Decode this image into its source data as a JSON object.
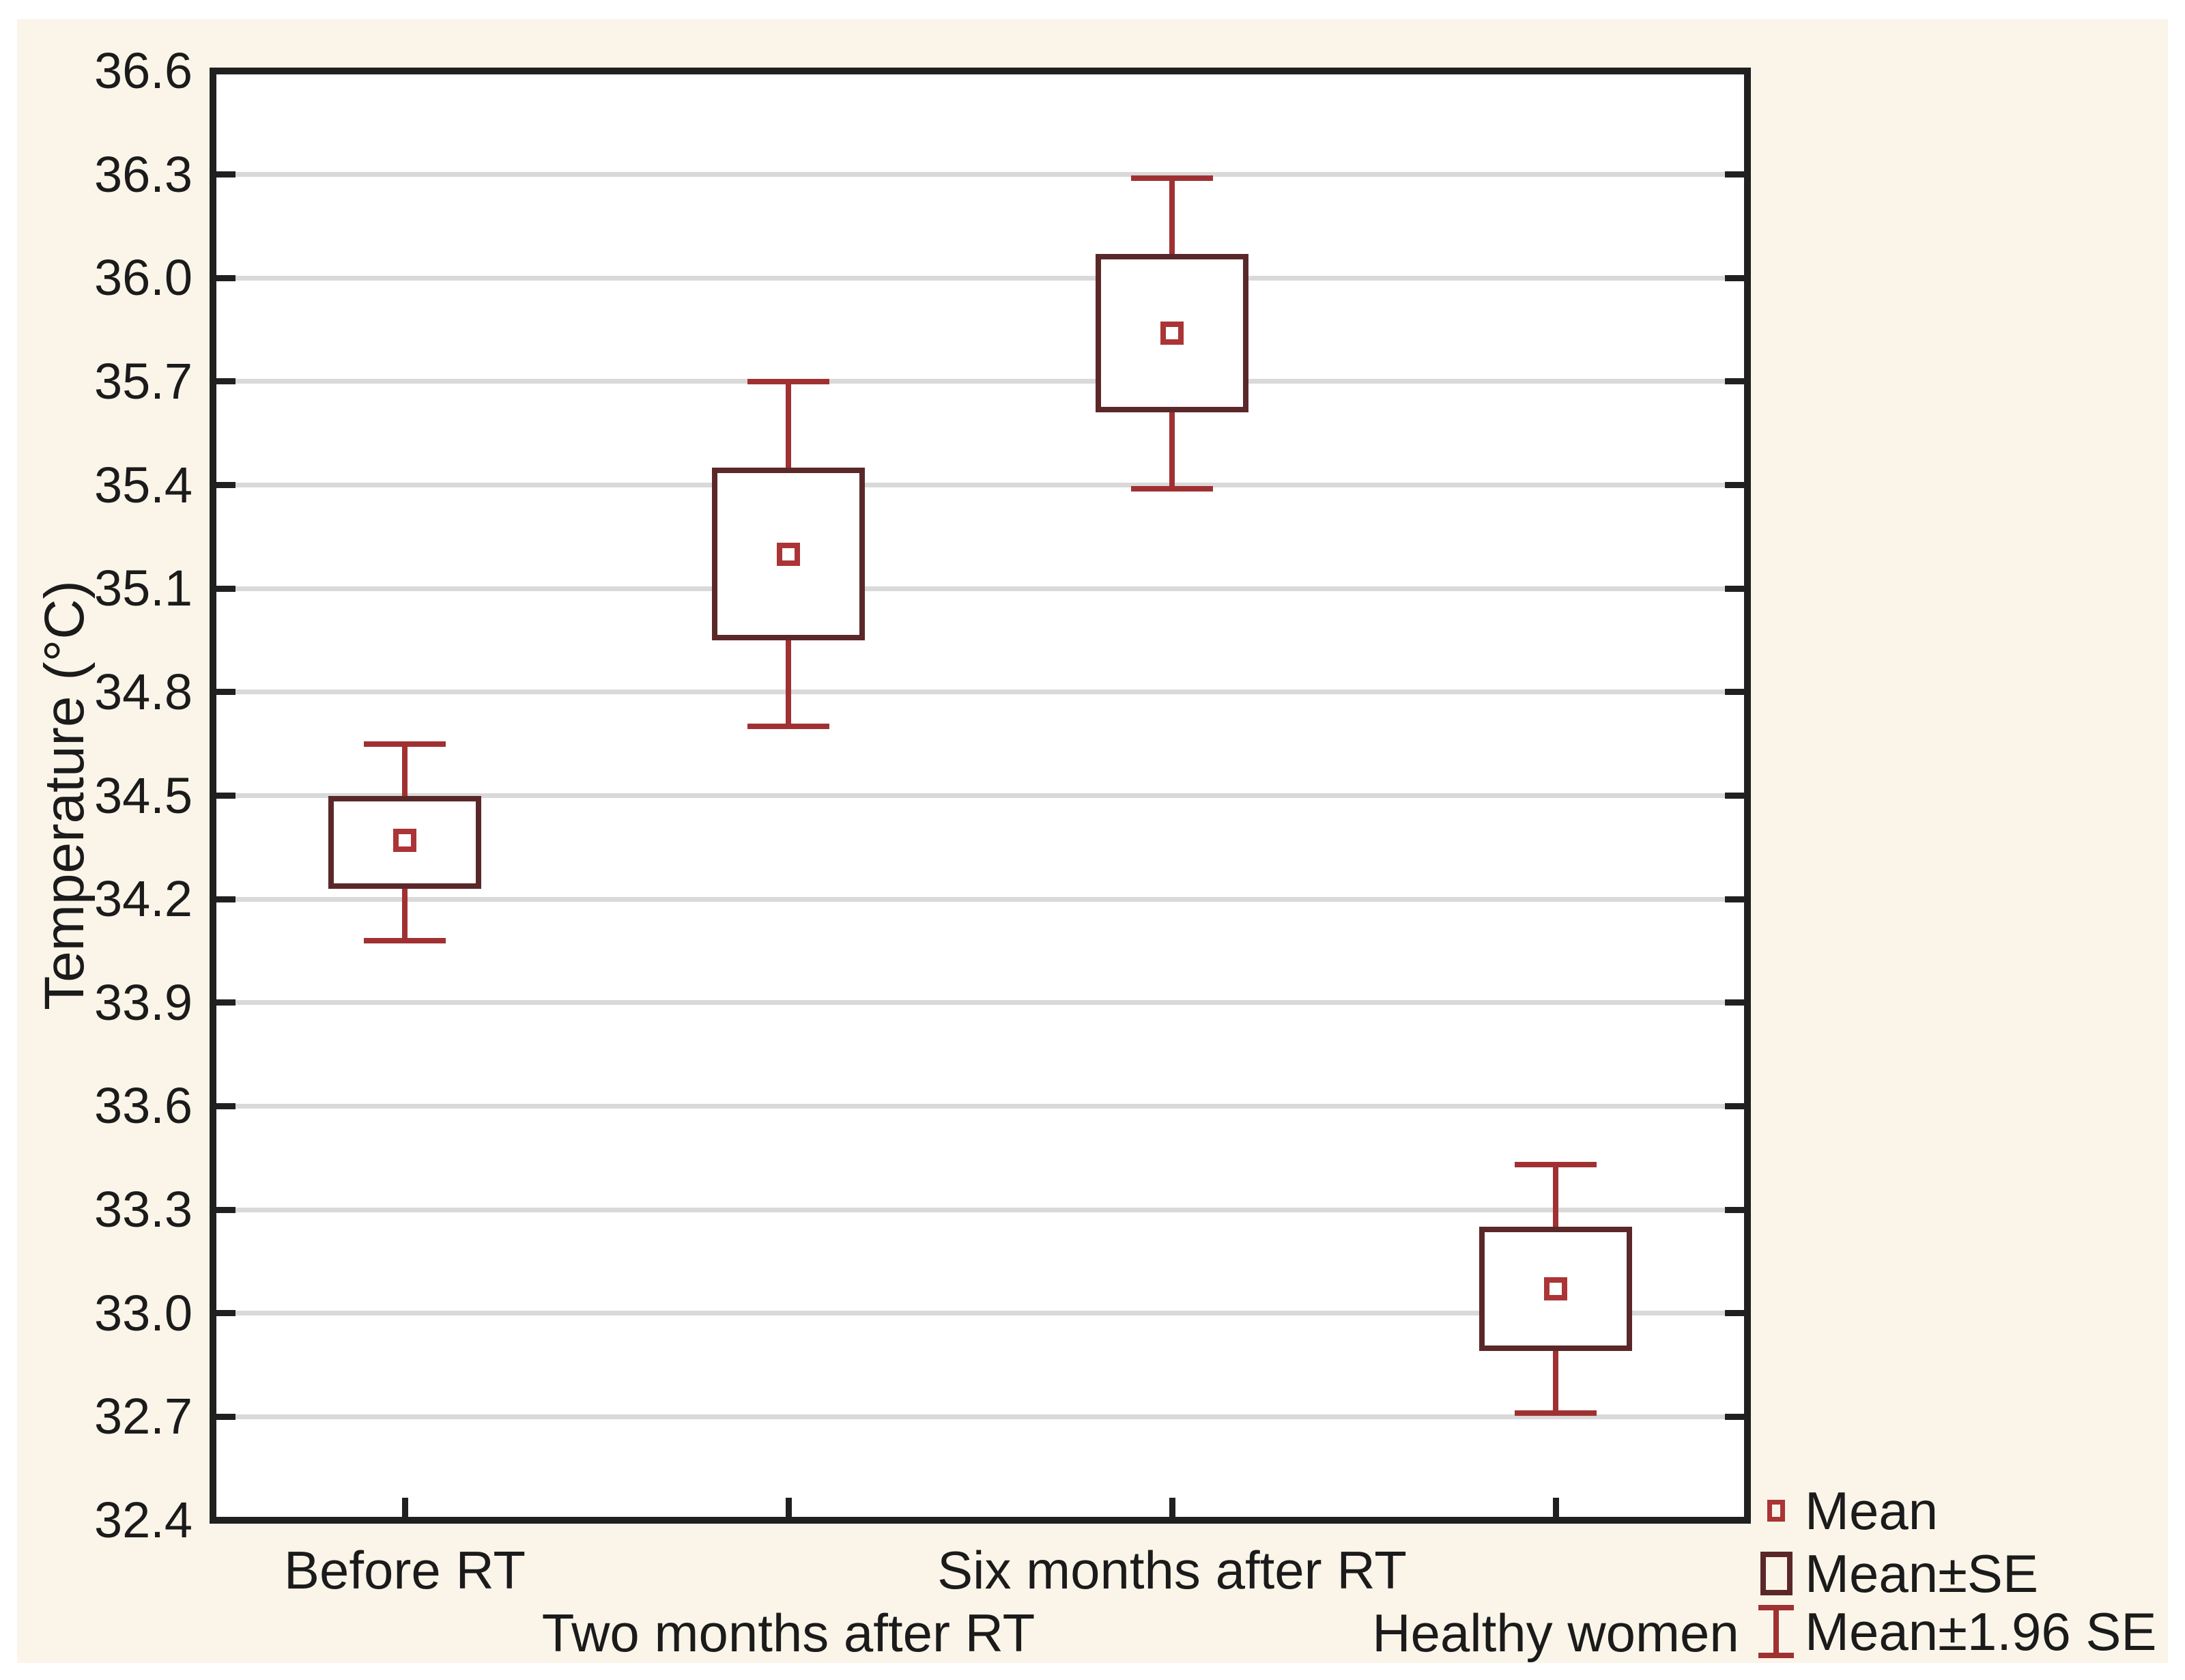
{
  "figure": {
    "page_color": "#ffffff",
    "background_color": "#fbf5e9",
    "plot_background": "#ffffff",
    "axis_color": "#202020",
    "grid_color": "#d9d9d9",
    "text_color": "#1b1b1b"
  },
  "chart_data": {
    "type": "box",
    "title": "",
    "xlabel": "",
    "ylabel": "Temperature (°C)",
    "ylim": [
      32.4,
      36.6
    ],
    "ytick_step": 0.3,
    "grid": true,
    "legend_position": "bottom-right",
    "categories": [
      "Before RT",
      "Two months after RT",
      "Six months after RT",
      "Healthy women"
    ],
    "groups": [
      {
        "category": "Before RT",
        "mean": 34.37,
        "se_low": 34.23,
        "se_high": 34.5,
        "ci_low": 34.08,
        "ci_high": 34.65
      },
      {
        "category": "Two months after RT",
        "mean": 35.2,
        "se_low": 34.95,
        "se_high": 35.45,
        "ci_low": 34.7,
        "ci_high": 35.7
      },
      {
        "category": "Six months after RT",
        "mean": 35.84,
        "se_low": 35.61,
        "se_high": 36.07,
        "ci_low": 35.39,
        "ci_high": 36.29
      },
      {
        "category": "Healthy women",
        "mean": 33.07,
        "se_low": 32.89,
        "se_high": 33.25,
        "ci_low": 32.71,
        "ci_high": 33.43
      }
    ],
    "legend": [
      {
        "label": "Mean",
        "marker": "mean-point"
      },
      {
        "label": "Mean±SE",
        "marker": "se-box"
      },
      {
        "label": "Mean±1.96 SE",
        "marker": "ci-whisker"
      }
    ],
    "colors": {
      "se_box": "#5b2829",
      "whisker": "#a03133",
      "mean_marker": "#ab3436"
    }
  }
}
